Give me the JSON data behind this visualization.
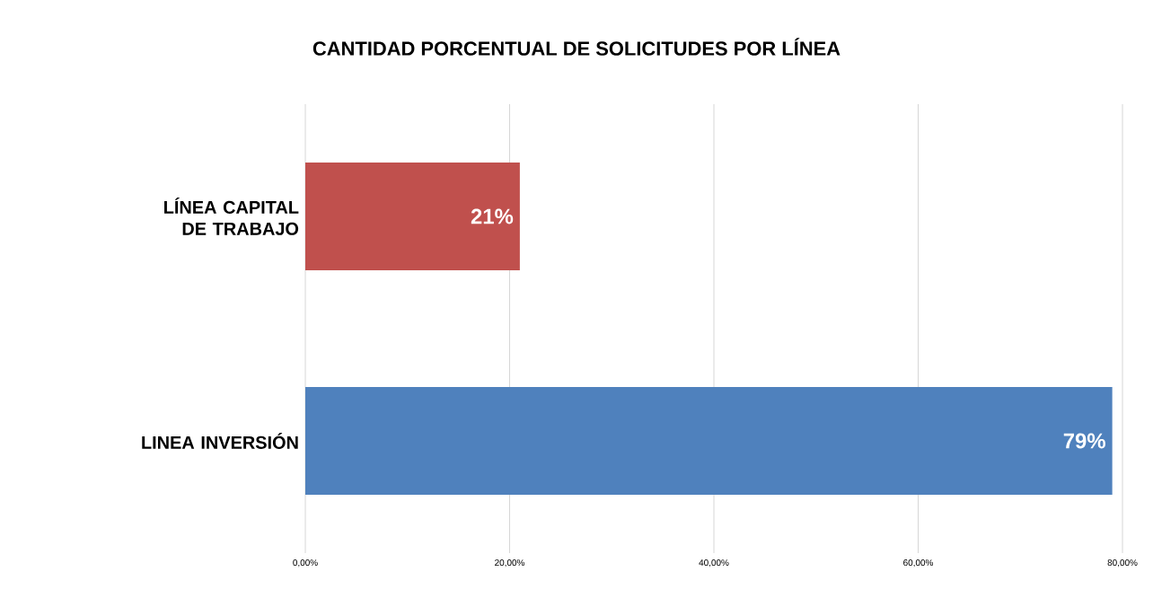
{
  "chart_data": {
    "type": "bar",
    "orientation": "horizontal",
    "title": "CANTIDAD PORCENTUAL DE SOLICITUDES POR LÍNEA",
    "categories": [
      "LÍNEA CAPITAL DE TRABAJO",
      "LINEA INVERSIÓN"
    ],
    "values": [
      21,
      79
    ],
    "colors": [
      "#c0504d",
      "#4f81bd"
    ],
    "value_labels": [
      "21%",
      "79%"
    ],
    "xlim": [
      0,
      80
    ],
    "xticks": [
      {
        "value": 0,
        "label": "0,00%"
      },
      {
        "value": 20,
        "label": "20,00%"
      },
      {
        "value": 40,
        "label": "40,00%"
      },
      {
        "value": 60,
        "label": "60,00%"
      },
      {
        "value": 80,
        "label": "80,00%"
      }
    ],
    "grid": "x"
  }
}
